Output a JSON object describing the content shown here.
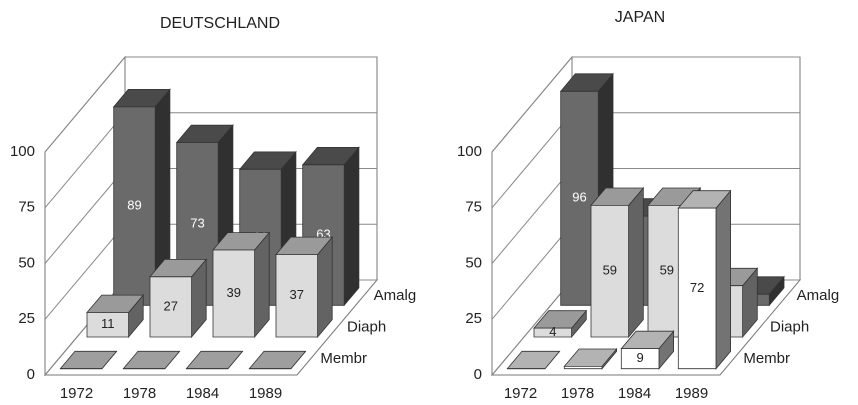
{
  "chart_data": [
    {
      "type": "bar3d",
      "title": "DEUTSCHLAND",
      "categories": [
        "1972",
        "1978",
        "1984",
        "1989"
      ],
      "series": [
        {
          "name": "Membr",
          "color": "#e2e2e2",
          "values": [
            0,
            0,
            0,
            0
          ]
        },
        {
          "name": "Diaph",
          "color": "#dcdcdc",
          "values": [
            11,
            27,
            39,
            37
          ]
        },
        {
          "name": "Amalg",
          "color": "#6a6a6a",
          "values": [
            89,
            73,
            61,
            63
          ]
        }
      ],
      "ylim": [
        0,
        100
      ],
      "yticks": [
        0,
        25,
        50,
        75,
        100
      ],
      "grid": true
    },
    {
      "type": "bar3d",
      "title": "JAPAN",
      "categories": [
        "1972",
        "1978",
        "1984",
        "1989"
      ],
      "series": [
        {
          "name": "Membr",
          "color": "#ffffff",
          "values": [
            0,
            1,
            9,
            72
          ]
        },
        {
          "name": "Diaph",
          "color": "#dcdcdc",
          "values": [
            4,
            59,
            59,
            23
          ]
        },
        {
          "name": "Amalg",
          "color": "#6a6a6a",
          "values": [
            96,
            40,
            32,
            5
          ]
        }
      ],
      "ylim": [
        0,
        100
      ],
      "yticks": [
        0,
        25,
        50,
        75,
        100
      ],
      "grid": true
    }
  ]
}
